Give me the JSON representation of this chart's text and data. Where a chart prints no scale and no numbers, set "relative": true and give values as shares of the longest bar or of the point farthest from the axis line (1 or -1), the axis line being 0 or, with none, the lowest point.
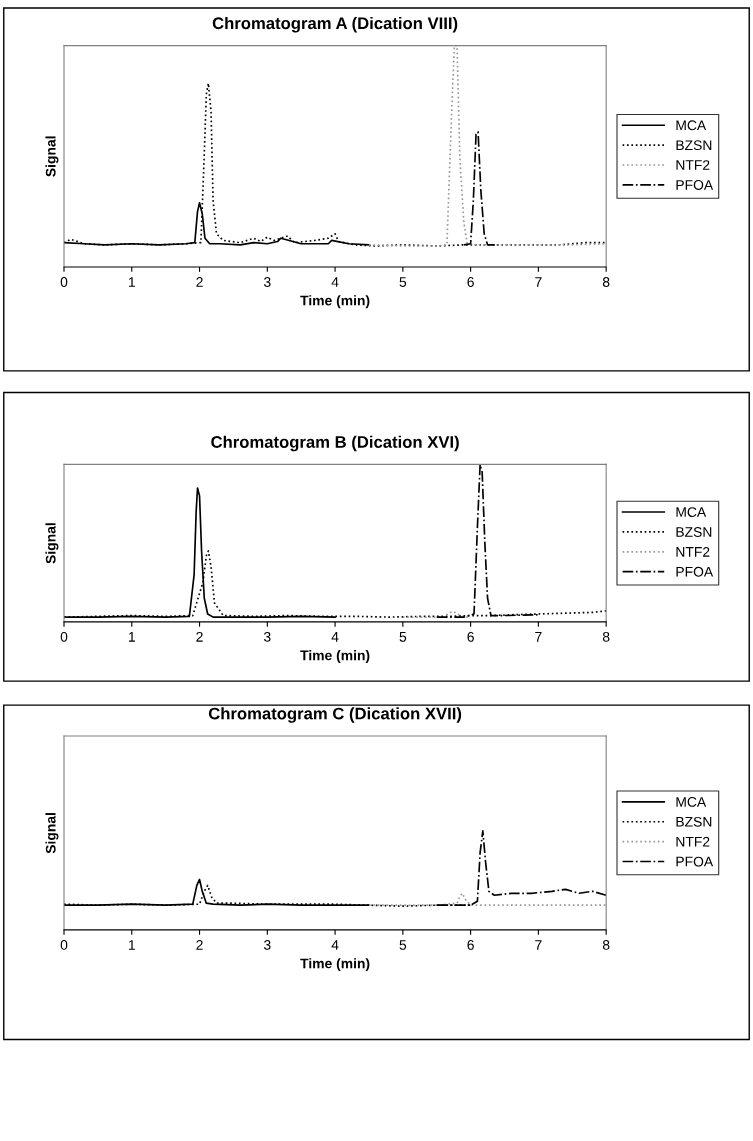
{
  "chart_data": [
    {
      "type": "line",
      "title": "Chromatogram A (Dication VIII)",
      "xlabel": "Time (min)",
      "ylabel": "Signal",
      "relative": true,
      "xlim": [
        0,
        8
      ],
      "xticks": [
        0,
        1,
        2,
        3,
        4,
        5,
        6,
        7,
        8
      ],
      "legend": "right",
      "grid": false,
      "series": [
        {
          "name": "MCA",
          "color": "#000000",
          "line_style": "solid",
          "x": [
            0,
            0.3,
            0.6,
            1.0,
            1.4,
            1.8,
            1.93,
            1.97,
            2.0,
            2.04,
            2.08,
            2.15,
            2.3,
            2.6,
            2.8,
            3.0,
            3.15,
            3.2,
            3.5,
            3.9,
            3.95,
            4.2,
            4.5
          ],
          "values": [
            0.11,
            0.105,
            0.1,
            0.105,
            0.1,
            0.105,
            0.11,
            0.25,
            0.29,
            0.24,
            0.13,
            0.105,
            0.105,
            0.1,
            0.11,
            0.105,
            0.115,
            0.13,
            0.105,
            0.105,
            0.12,
            0.105,
            0.1
          ]
        },
        {
          "name": "BZSN",
          "color": "#000000",
          "line_style": "dotted",
          "x": [
            0,
            0.1,
            0.3,
            0.6,
            1.0,
            1.4,
            1.8,
            2.02,
            2.07,
            2.1,
            2.13,
            2.17,
            2.2,
            2.25,
            2.35,
            2.6,
            2.8,
            2.9,
            3.0,
            3.1,
            3.3,
            3.4,
            3.7,
            3.9,
            4.0,
            4.05,
            4.3,
            4.6,
            5.0,
            5.5,
            5.9,
            6.3,
            6.8,
            7.3,
            7.7,
            8.0
          ],
          "values": [
            0.11,
            0.125,
            0.105,
            0.1,
            0.105,
            0.1,
            0.105,
            0.11,
            0.51,
            0.78,
            0.83,
            0.7,
            0.3,
            0.15,
            0.12,
            0.11,
            0.13,
            0.115,
            0.135,
            0.12,
            0.14,
            0.11,
            0.12,
            0.13,
            0.15,
            0.115,
            0.1,
            0.095,
            0.1,
            0.095,
            0.1,
            0.1,
            0.1,
            0.1,
            0.11,
            0.11
          ]
        },
        {
          "name": "NTF2",
          "color": "#999999",
          "line_style": "dotted",
          "x": [
            4.5,
            5.0,
            5.5,
            5.65,
            5.72,
            5.76,
            5.8,
            5.84,
            5.9,
            5.95,
            6.1,
            6.5,
            7.0,
            7.5,
            8.0
          ],
          "values": [
            0.1,
            0.095,
            0.095,
            0.1,
            0.7,
            1.0,
            1.0,
            0.5,
            0.2,
            0.105,
            0.1,
            0.1,
            0.1,
            0.1,
            0.105
          ]
        },
        {
          "name": "PFOA",
          "color": "#000000",
          "line_style": "dashdot",
          "x": [
            5.9,
            6.0,
            6.04,
            6.08,
            6.11,
            6.15,
            6.2,
            6.25,
            6.4
          ],
          "values": [
            0.1,
            0.105,
            0.3,
            0.6,
            0.61,
            0.35,
            0.15,
            0.1,
            0.1
          ]
        }
      ]
    },
    {
      "type": "line",
      "title": "Chromatogram B (Dication XVI)",
      "xlabel": "Time (min)",
      "ylabel": "Signal",
      "relative": true,
      "xlim": [
        0,
        8
      ],
      "xticks": [
        0,
        1,
        2,
        3,
        4,
        5,
        6,
        7,
        8
      ],
      "legend": "right",
      "grid": false,
      "series": [
        {
          "name": "MCA",
          "color": "#000000",
          "line_style": "solid",
          "x": [
            0,
            0.5,
            1.0,
            1.5,
            1.85,
            1.92,
            1.95,
            1.97,
            2.0,
            2.03,
            2.07,
            2.12,
            2.2,
            2.6,
            3.0,
            3.5,
            4.0
          ],
          "values": [
            0.03,
            0.03,
            0.035,
            0.03,
            0.035,
            0.3,
            0.7,
            0.85,
            0.8,
            0.45,
            0.15,
            0.05,
            0.03,
            0.03,
            0.03,
            0.035,
            0.03
          ]
        },
        {
          "name": "BZSN",
          "color": "#000000",
          "line_style": "dotted",
          "x": [
            0,
            0.5,
            1.0,
            1.5,
            1.9,
            2.05,
            2.1,
            2.13,
            2.17,
            2.22,
            2.35,
            2.8,
            3.3,
            3.8,
            4.3,
            4.8,
            5.3,
            5.7,
            6.0,
            6.3,
            6.6,
            7.0,
            7.4,
            7.8,
            8.0
          ],
          "values": [
            0.03,
            0.035,
            0.04,
            0.035,
            0.04,
            0.25,
            0.42,
            0.45,
            0.35,
            0.12,
            0.04,
            0.035,
            0.04,
            0.035,
            0.035,
            0.03,
            0.035,
            0.035,
            0.04,
            0.04,
            0.045,
            0.05,
            0.055,
            0.06,
            0.07
          ]
        },
        {
          "name": "NTF2",
          "color": "#999999",
          "line_style": "dotted",
          "x": [
            5.0,
            5.6,
            5.7,
            5.75,
            5.8,
            5.9,
            6.0
          ],
          "values": [
            0.03,
            0.03,
            0.06,
            0.065,
            0.05,
            0.03,
            0.03
          ]
        },
        {
          "name": "PFOA",
          "color": "#000000",
          "line_style": "dashdot",
          "x": [
            5.5,
            5.9,
            6.05,
            6.1,
            6.14,
            6.17,
            6.21,
            6.25,
            6.3,
            6.5,
            7.0
          ],
          "values": [
            0.03,
            0.03,
            0.05,
            0.6,
            1.0,
            0.95,
            0.5,
            0.15,
            0.04,
            0.04,
            0.045
          ]
        }
      ]
    },
    {
      "type": "line",
      "title": "Chromatogram C (Dication XVII)",
      "xlabel": "Time (min)",
      "ylabel": "Signal",
      "relative": true,
      "xlim": [
        0,
        8
      ],
      "xticks": [
        0,
        1,
        2,
        3,
        4,
        5,
        6,
        7,
        8
      ],
      "legend": "right",
      "grid": false,
      "series": [
        {
          "name": "MCA",
          "color": "#000000",
          "line_style": "solid",
          "x": [
            0,
            0.5,
            1.0,
            1.5,
            1.9,
            1.96,
            2.0,
            2.04,
            2.1,
            2.2,
            2.6,
            3.0,
            3.5,
            4.0,
            4.5
          ],
          "values": [
            0.25,
            0.25,
            0.26,
            0.25,
            0.26,
            0.45,
            0.51,
            0.39,
            0.27,
            0.26,
            0.25,
            0.26,
            0.25,
            0.25,
            0.25
          ]
        },
        {
          "name": "BZSN",
          "color": "#000000",
          "line_style": "dotted",
          "x": [
            0,
            0.5,
            1.0,
            1.5,
            2.0,
            2.07,
            2.12,
            2.18,
            2.25,
            2.5,
            3.0,
            3.5,
            4.0,
            4.5,
            5.0,
            5.5,
            6.0
          ],
          "values": [
            0.26,
            0.25,
            0.26,
            0.25,
            0.26,
            0.39,
            0.45,
            0.33,
            0.27,
            0.27,
            0.26,
            0.26,
            0.26,
            0.25,
            0.24,
            0.25,
            0.25
          ]
        },
        {
          "name": "NTF2",
          "color": "#999999",
          "line_style": "dotted",
          "x": [
            4.5,
            5.0,
            5.5,
            5.8,
            5.85,
            5.88,
            5.92,
            6.0,
            6.5,
            7.0,
            7.5,
            8.0
          ],
          "values": [
            0.25,
            0.25,
            0.25,
            0.27,
            0.35,
            0.37,
            0.31,
            0.25,
            0.25,
            0.25,
            0.25,
            0.25
          ]
        },
        {
          "name": "PFOA",
          "color": "#000000",
          "line_style": "dashdot",
          "x": [
            5.5,
            6.0,
            6.1,
            6.14,
            6.18,
            6.22,
            6.27,
            6.35,
            6.6,
            6.9,
            7.2,
            7.4,
            7.6,
            7.8,
            8.0
          ],
          "values": [
            0.25,
            0.25,
            0.29,
            0.78,
            1,
            0.69,
            0.39,
            0.35,
            0.37,
            0.37,
            0.39,
            0.41,
            0.37,
            0.39,
            0.35
          ]
        }
      ]
    }
  ]
}
